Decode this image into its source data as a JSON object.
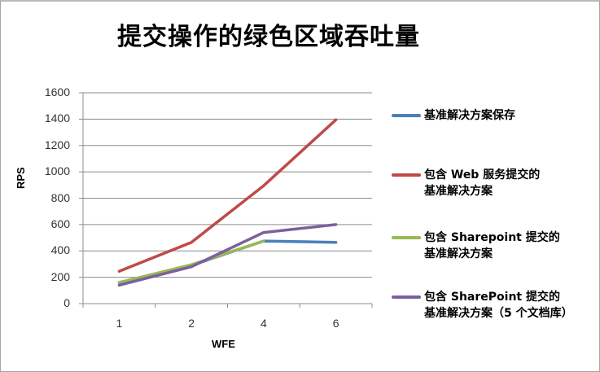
{
  "chart_data": {
    "type": "line",
    "title": "提交操作的绿色区域吞吐量",
    "xlabel": "WFE",
    "ylabel": "RPS",
    "categories": [
      "1",
      "2",
      "4",
      "6"
    ],
    "ylim": [
      0,
      1600
    ],
    "yticks": [
      0,
      200,
      400,
      600,
      800,
      1000,
      1200,
      1400,
      1600
    ],
    "grid": true,
    "legend_position": "right",
    "series": [
      {
        "name": "基准解决方案保存",
        "color": "#4a7ebb",
        "values": [
          160,
          290,
          475,
          465
        ]
      },
      {
        "name": "包含 Web 服务提交的基准解决方案",
        "color": "#be4b48",
        "values": [
          245,
          465,
          895,
          1395
        ]
      },
      {
        "name": "包含 Sharepoint 提交的基准解决方案",
        "color": "#98b954",
        "values": [
          160,
          295,
          475,
          null
        ]
      },
      {
        "name": "包含 SharePoint 提交的基准解决方案（5 个文档库）",
        "color": "#7d5fa0",
        "values": [
          140,
          280,
          540,
          600
        ]
      }
    ]
  },
  "legend": {
    "items": [
      {
        "label": "基准解决方案保存",
        "color": "#4a7ebb"
      },
      {
        "label": "包含 Web 服务提交的\n基准解决方案",
        "color": "#be4b48"
      },
      {
        "label": "包含 Sharepoint 提交的\n基准解决方案",
        "color": "#98b954"
      },
      {
        "label": "包含 SharePoint 提交的\n基准解决方案（5 个文档库）",
        "color": "#7d5fa0"
      }
    ]
  }
}
